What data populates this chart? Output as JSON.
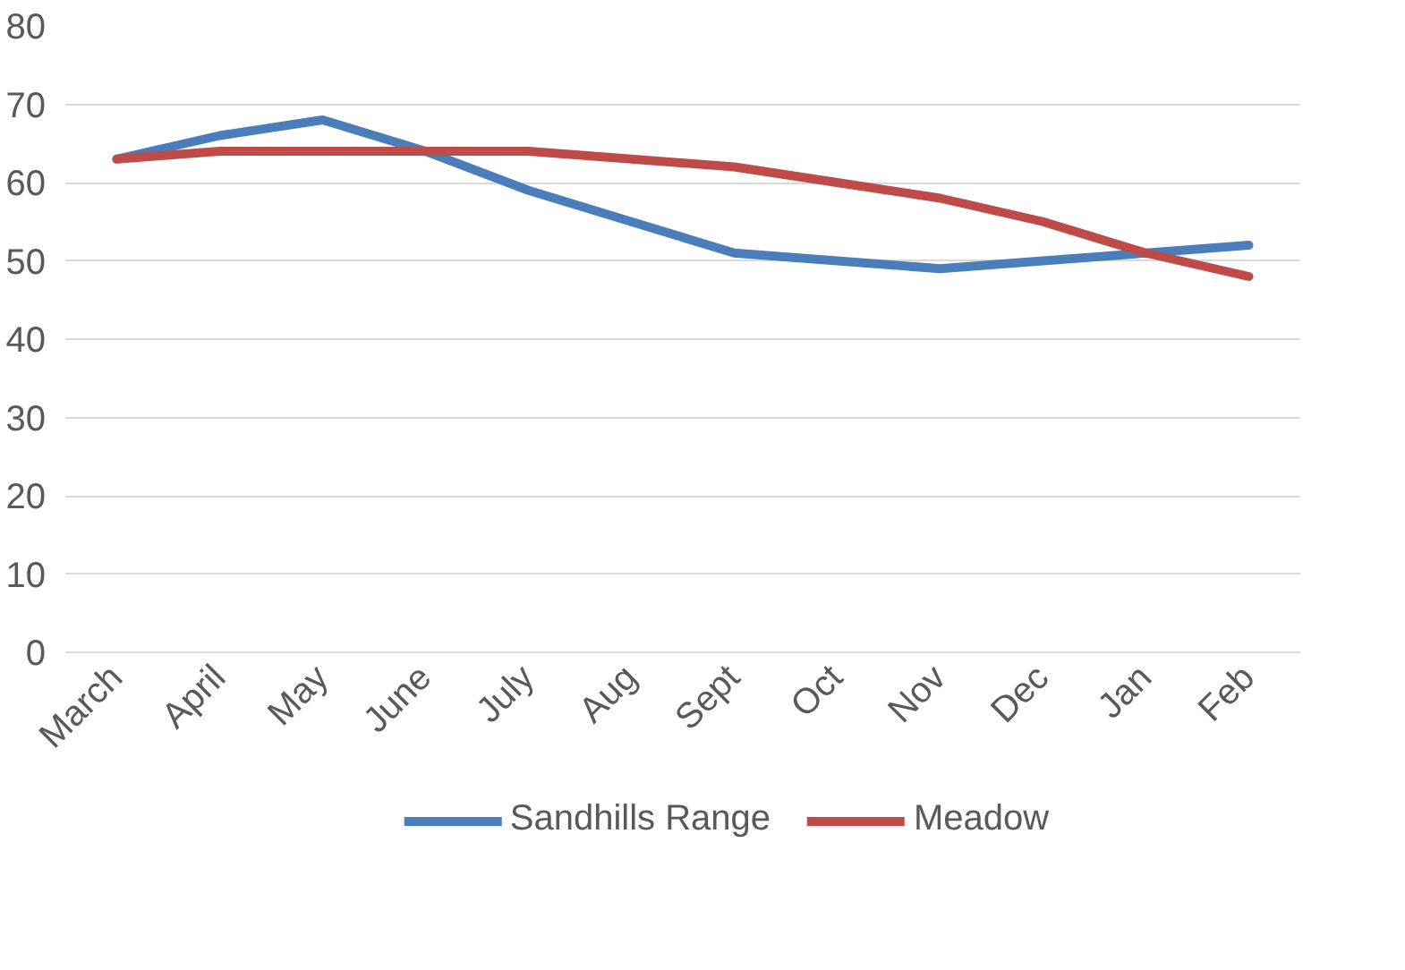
{
  "chart_data": {
    "type": "line",
    "categories": [
      "March",
      "April",
      "May",
      "June",
      "July",
      "Aug",
      "Sept",
      "Oct",
      "Nov",
      "Dec",
      "Jan",
      "Feb"
    ],
    "series": [
      {
        "name": "Sandhills Range",
        "color": "#4a7ebb",
        "values": [
          63,
          66,
          68,
          64,
          59,
          55,
          51,
          50,
          49,
          50,
          51,
          52
        ]
      },
      {
        "name": "Meadow",
        "color": "#be4b48",
        "values": [
          63,
          64,
          64,
          64,
          64,
          63,
          62,
          60,
          58,
          55,
          51,
          48
        ]
      }
    ],
    "ylim": [
      0,
      80
    ],
    "yticks": [
      0,
      10,
      20,
      30,
      40,
      50,
      60,
      70,
      80
    ],
    "grid": "y",
    "legend": "bottom",
    "marker": "none",
    "line_style": "solid"
  }
}
